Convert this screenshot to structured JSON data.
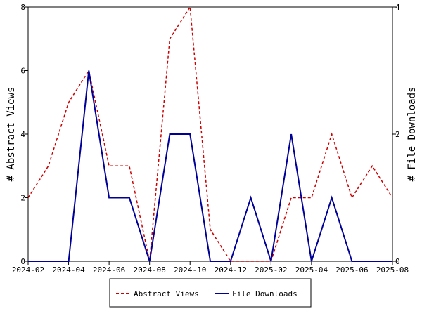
{
  "chart_data": {
    "type": "line",
    "x": [
      "2024-02",
      "2024-03",
      "2024-04",
      "2024-05",
      "2024-06",
      "2024-07",
      "2024-08",
      "2024-09",
      "2024-10",
      "2024-11",
      "2024-12",
      "2025-01",
      "2025-02",
      "2025-03",
      "2025-04",
      "2025-05",
      "2025-06",
      "2025-07",
      "2025-08"
    ],
    "x_tick_labels": [
      "2024-02",
      "2024-04",
      "2024-06",
      "2024-08",
      "2024-10",
      "2024-12",
      "2025-02",
      "2025-04",
      "2025-06",
      "2025-08"
    ],
    "series": [
      {
        "name": "Abstract Views",
        "axis": "left",
        "color": "#cc0000",
        "style": "dashed",
        "values": [
          2,
          3,
          5,
          6,
          3,
          3,
          0,
          7,
          8,
          1,
          0,
          0,
          0,
          2,
          2,
          4,
          2,
          3,
          2
        ]
      },
      {
        "name": "File Downloads",
        "axis": "right",
        "color": "#000099",
        "style": "solid",
        "values": [
          0,
          0,
          0,
          3,
          1,
          1,
          0,
          2,
          2,
          0,
          0,
          1,
          0,
          2,
          0,
          1,
          0,
          0,
          0
        ]
      }
    ],
    "ylabel": "# Abstract Views",
    "y2label": "# File Downloads",
    "ylim": [
      0,
      8
    ],
    "y2lim": [
      0,
      4
    ],
    "y_ticks": [
      "0",
      "2",
      "4",
      "6",
      "8"
    ],
    "y2_ticks": [
      "0",
      "2",
      "4"
    ],
    "legend_position": "bottom"
  }
}
